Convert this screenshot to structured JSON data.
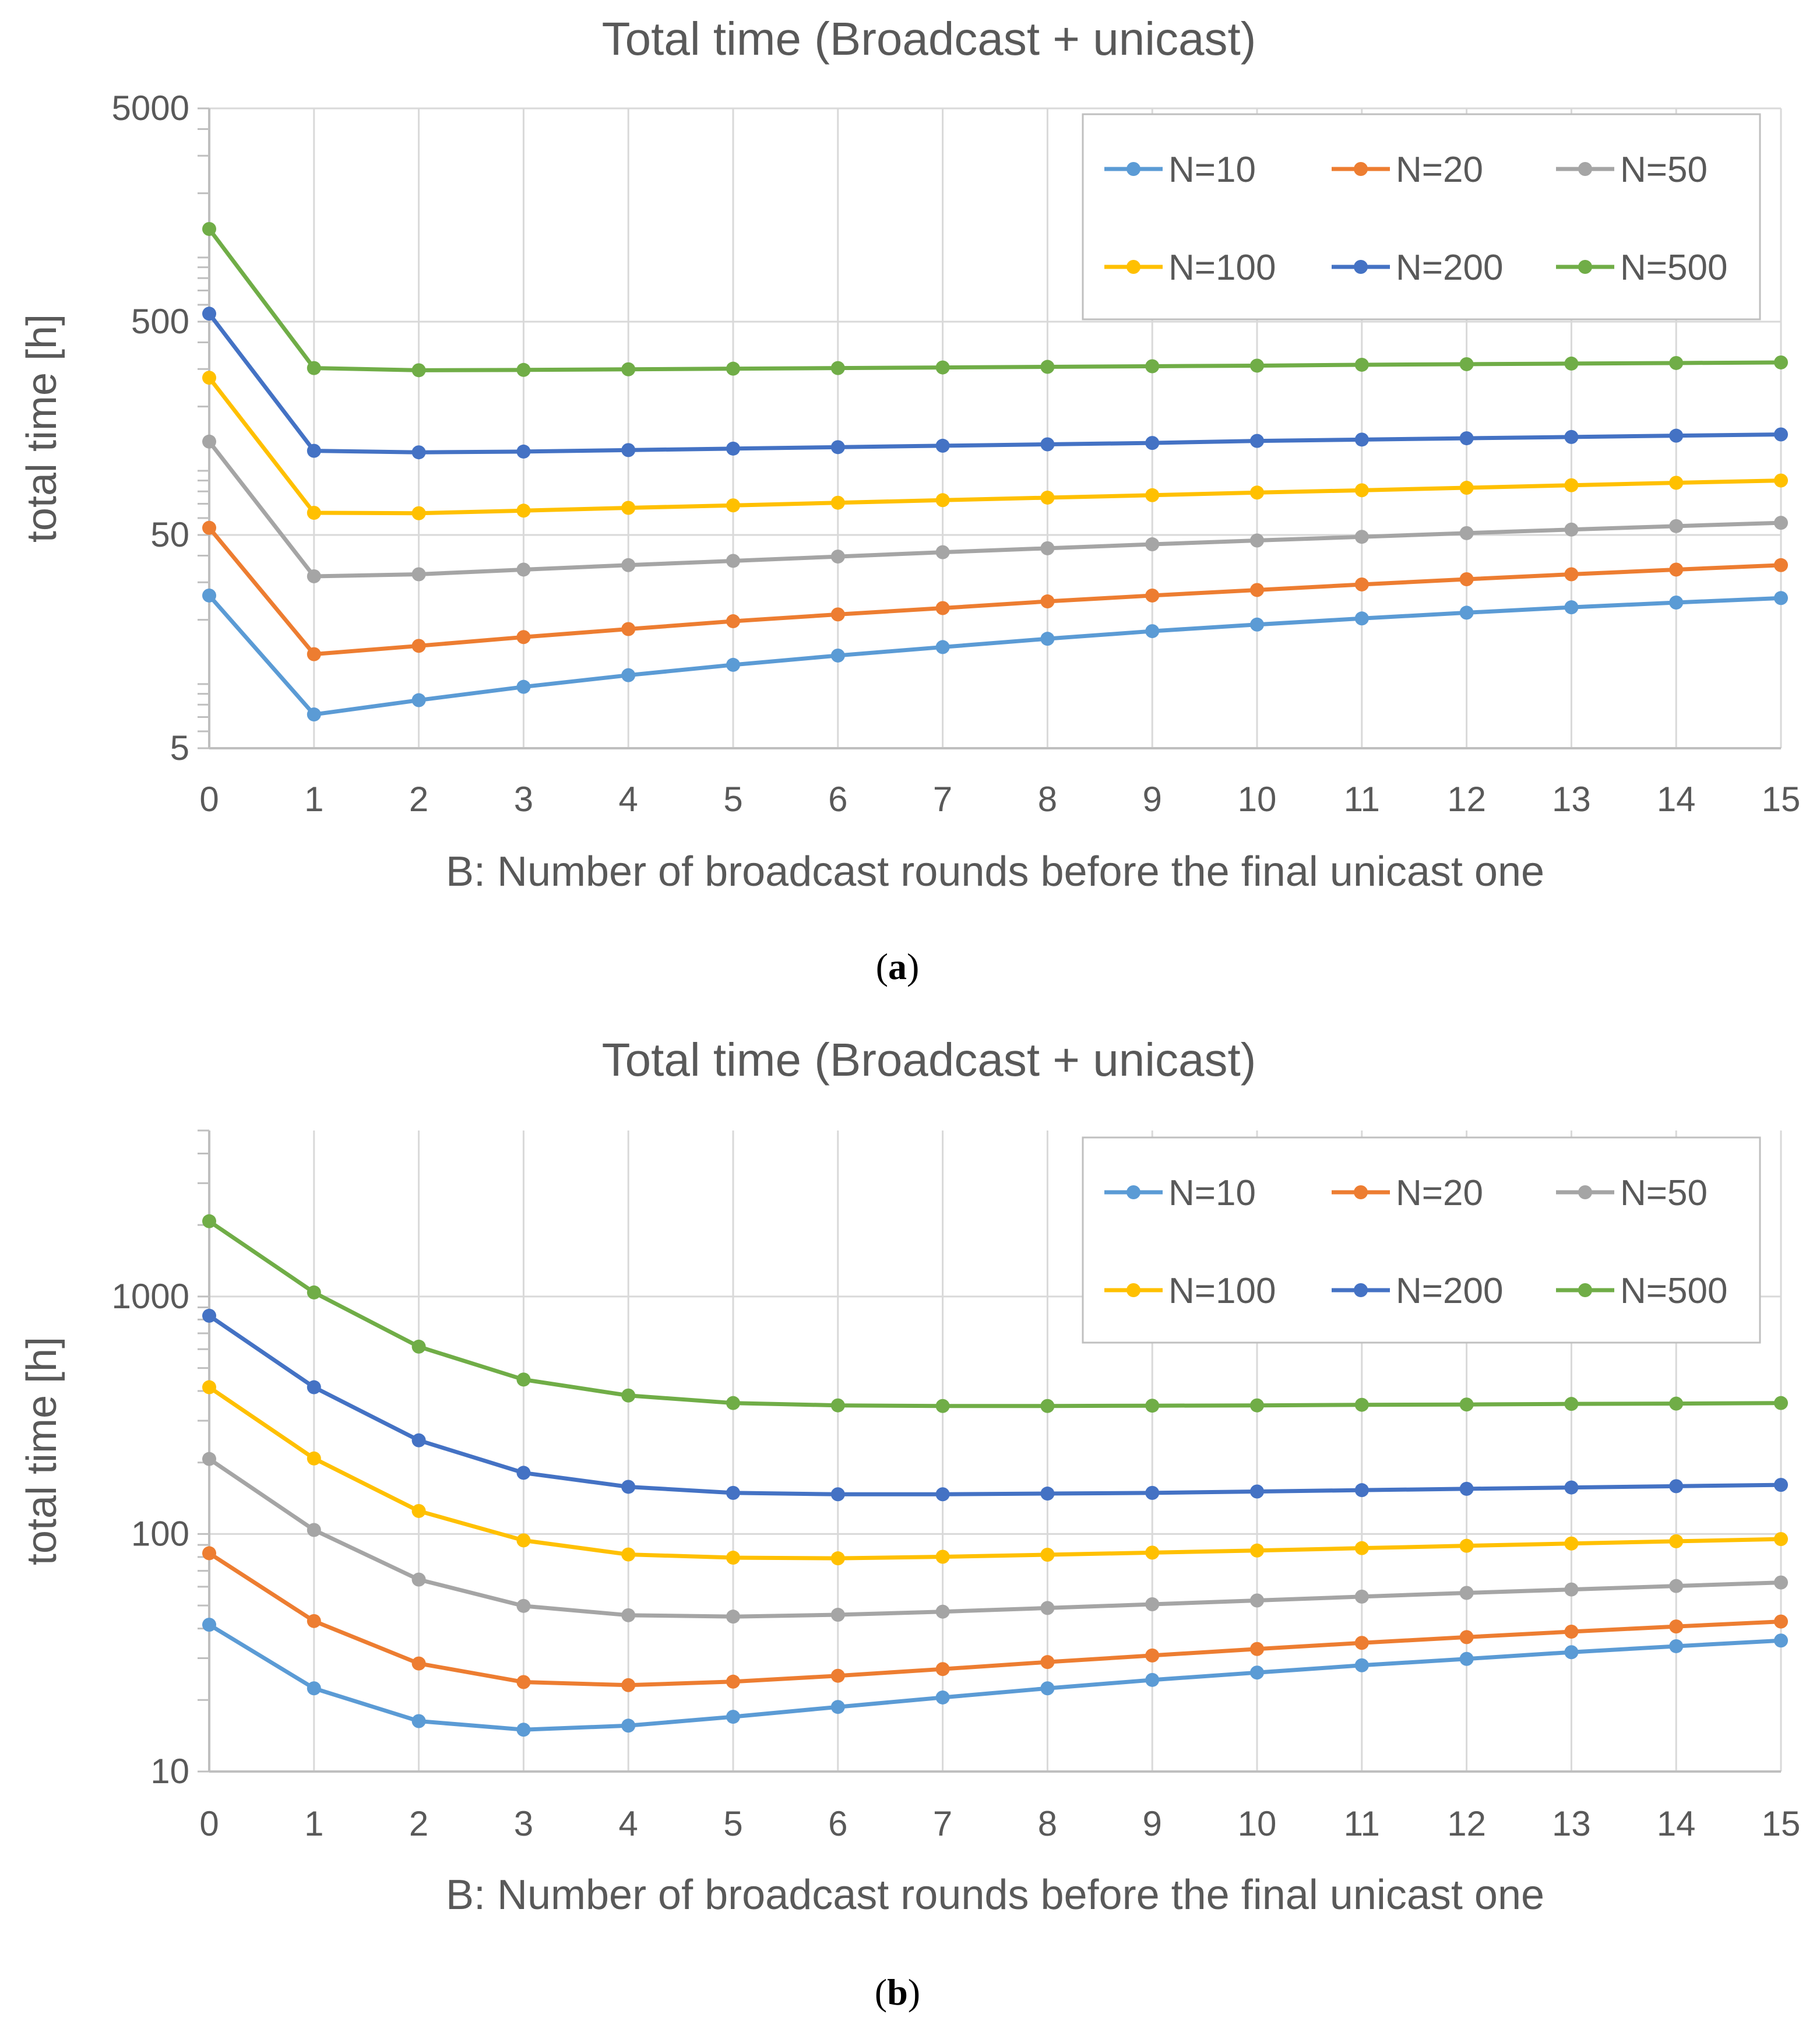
{
  "chart_data": [
    {
      "type": "line",
      "title": "Total time (Broadcast + unicast)",
      "xlabel": "B: Number of broadcast rounds before the final unicast one",
      "ylabel": "total time [h]",
      "yscale": "log",
      "ylim": [
        5,
        5000
      ],
      "y_ticks": [
        "5",
        "50",
        "500",
        "5000"
      ],
      "x_ticks": [
        "0",
        "1",
        "2",
        "3",
        "4",
        "5",
        "6",
        "7",
        "8",
        "9",
        "10",
        "11",
        "12",
        "13",
        "14",
        "15"
      ],
      "x": [
        0,
        1,
        2,
        3,
        4,
        5,
        6,
        7,
        8,
        9,
        10,
        11,
        12,
        13,
        14,
        15
      ],
      "grid": "vertical",
      "legend": "top-right",
      "caption_letter": "a",
      "series": [
        {
          "name": "N=10",
          "color": "#5B9BD5",
          "values": [
            26.0,
            7.2,
            8.4,
            9.7,
            11.0,
            12.3,
            13.6,
            14.9,
            16.3,
            17.7,
            19.0,
            20.3,
            21.6,
            22.9,
            24.1,
            25.3
          ]
        },
        {
          "name": "N=20",
          "color": "#ED7D31",
          "values": [
            54,
            13.8,
            15.1,
            16.6,
            18.1,
            19.7,
            21.2,
            22.7,
            24.4,
            26.0,
            27.6,
            29.3,
            31.0,
            32.7,
            34.4,
            36.1
          ]
        },
        {
          "name": "N=50",
          "color": "#A5A5A5",
          "values": [
            137,
            32.0,
            32.7,
            34.4,
            36.1,
            37.8,
            39.6,
            41.5,
            43.3,
            45.2,
            47.1,
            49.0,
            51.0,
            53.0,
            55.0,
            57.0
          ]
        },
        {
          "name": "N=100",
          "color": "#FFC000",
          "values": [
            273,
            63.5,
            63.2,
            65.0,
            67.0,
            68.8,
            70.8,
            72.8,
            74.8,
            76.8,
            79.0,
            81.0,
            83.2,
            85.5,
            87.8,
            90.0
          ]
        },
        {
          "name": "N=200",
          "color": "#4472C4",
          "values": [
            545,
            124,
            122,
            123,
            125,
            127,
            129,
            131,
            133,
            135,
            138,
            140,
            142,
            144,
            146,
            148
          ]
        },
        {
          "name": "N=500",
          "color": "#70AD47",
          "values": [
            1360,
            303,
            296,
            297,
            299,
            301,
            303,
            305,
            307,
            309,
            311,
            314,
            316,
            318,
            320,
            322
          ]
        }
      ]
    },
    {
      "type": "line",
      "title": "Total time (Broadcast + unicast)",
      "xlabel": "B: Number of broadcast rounds before the final unicast one",
      "ylabel": "total time [h]",
      "yscale": "log",
      "ylim": [
        10,
        5000
      ],
      "y_ticks": [
        "10",
        "100",
        "1000"
      ],
      "x_ticks": [
        "0",
        "1",
        "2",
        "3",
        "4",
        "5",
        "6",
        "7",
        "8",
        "9",
        "10",
        "11",
        "12",
        "13",
        "14",
        "15"
      ],
      "x": [
        0,
        1,
        2,
        3,
        4,
        5,
        6,
        7,
        8,
        9,
        10,
        11,
        12,
        13,
        14,
        15
      ],
      "grid": "vertical",
      "legend": "top-right",
      "caption_letter": "b",
      "series": [
        {
          "name": "N=10",
          "color": "#5B9BD5",
          "values": [
            41.5,
            22.4,
            16.3,
            15.0,
            15.6,
            17.0,
            18.7,
            20.5,
            22.4,
            24.3,
            26.1,
            28.0,
            29.8,
            31.8,
            33.7,
            35.6
          ]
        },
        {
          "name": "N=20",
          "color": "#ED7D31",
          "values": [
            83,
            43,
            28.5,
            23.8,
            23.1,
            23.9,
            25.3,
            27.0,
            28.9,
            30.8,
            32.8,
            34.8,
            36.8,
            38.8,
            40.8,
            42.8
          ]
        },
        {
          "name": "N=50",
          "color": "#A5A5A5",
          "values": [
            207,
            104,
            64.3,
            49.8,
            45.5,
            44.9,
            45.7,
            47.1,
            48.8,
            50.6,
            52.5,
            54.5,
            56.5,
            58.4,
            60.4,
            62.5
          ]
        },
        {
          "name": "N=100",
          "color": "#FFC000",
          "values": [
            415,
            208,
            125,
            94,
            82,
            79.5,
            79.0,
            80.2,
            81.8,
            83.5,
            85.2,
            87.2,
            89.2,
            91.2,
            93.2,
            95.2
          ]
        },
        {
          "name": "N=200",
          "color": "#4472C4",
          "values": [
            830,
            415,
            248,
            181,
            158,
            149,
            147,
            147,
            148,
            149,
            151,
            153,
            155,
            157,
            159,
            161
          ]
        },
        {
          "name": "N=500",
          "color": "#70AD47",
          "values": [
            2075,
            1040,
            615,
            447,
            383,
            356,
            348,
            346,
            346,
            347,
            348,
            350,
            351,
            353,
            354,
            356
          ]
        }
      ]
    }
  ]
}
